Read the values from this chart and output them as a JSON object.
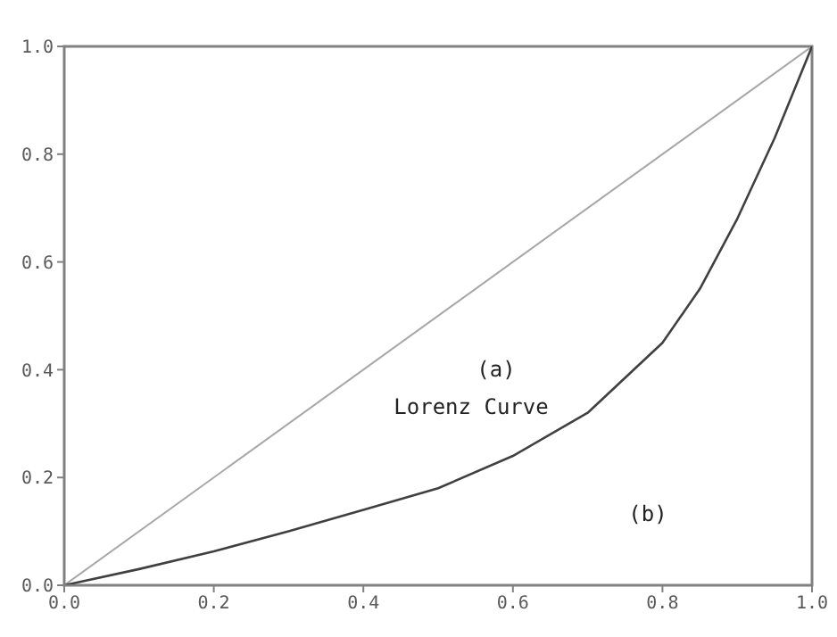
{
  "chart_data": {
    "type": "line",
    "series": [
      {
        "color": "#a6a6a6",
        "x": [
          0,
          1
        ],
        "values": [
          0,
          1
        ]
      },
      {
        "color": "#404040",
        "x": [
          0,
          0.1,
          0.2,
          0.3,
          0.4,
          0.5,
          0.6,
          0.7,
          0.8,
          0.85,
          0.9,
          0.95,
          1
        ],
        "values": [
          0,
          0.03,
          0.063,
          0.1,
          0.14,
          0.18,
          0.24,
          0.32,
          0.45,
          0.55,
          0.68,
          0.83,
          1
        ]
      }
    ],
    "xlim": [
      0,
      1
    ],
    "ylim": [
      0,
      1
    ],
    "xticks": [
      {
        "value": 0,
        "label": "0.0"
      },
      {
        "value": 0.2,
        "label": "0.2"
      },
      {
        "value": 0.4,
        "label": "0.4"
      },
      {
        "value": 0.6,
        "label": "0.6"
      },
      {
        "value": 0.8,
        "label": "0.8"
      },
      {
        "value": 1,
        "label": "1.0"
      }
    ],
    "yticks": [
      {
        "value": 0,
        "label": "0.0"
      },
      {
        "value": 0.2,
        "label": "0.2"
      },
      {
        "value": 0.4,
        "label": "0.4"
      },
      {
        "value": 0.6,
        "label": "0.6"
      },
      {
        "value": 0.8,
        "label": "0.8"
      },
      {
        "value": 1,
        "label": "1.0"
      }
    ],
    "annotations": [
      "(a)",
      "Lorenz Curve",
      "(b)"
    ],
    "marker": "none",
    "line_style": "solid"
  }
}
